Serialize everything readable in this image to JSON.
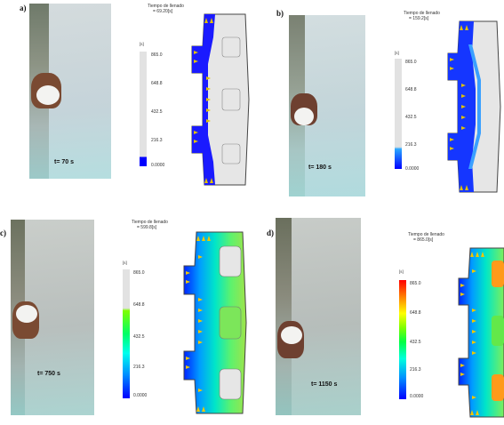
{
  "panels": [
    {
      "letter": "a)",
      "time_label": "t= 70 s",
      "fill_title": "Tiempo de llenado",
      "fill_value": "= 69.20[s]",
      "unit": "[s]",
      "ticks": [
        "865.0",
        "648.8",
        "432.5",
        "216.3",
        "0.0000"
      ],
      "fill_fraction": 0.08
    },
    {
      "letter": "b)",
      "time_label": "t= 180 s",
      "fill_title": "Tiempo de llenado",
      "fill_value": "= 159.2[s]",
      "unit": "[s]",
      "ticks": [
        "865.0",
        "648.8",
        "432.5",
        "216.3",
        "0.0000"
      ],
      "fill_fraction": 0.18
    },
    {
      "letter": "c)",
      "time_label": "t= 750 s",
      "fill_title": "Tiempo de llenado",
      "fill_value": "= 599.8[s]",
      "unit": "[s]",
      "ticks": [
        "865.0",
        "648.8",
        "432.5",
        "216.3",
        "0.0000"
      ],
      "fill_fraction": 0.69
    },
    {
      "letter": "d)",
      "time_label": "t= 1150 s",
      "fill_title": "Tiempo de llenado",
      "fill_value": "= 865.0[s]",
      "unit": "[s]",
      "ticks": [
        "865.0",
        "648.8",
        "432.5",
        "216.3",
        "0.0000"
      ],
      "fill_fraction": 1.0
    }
  ]
}
